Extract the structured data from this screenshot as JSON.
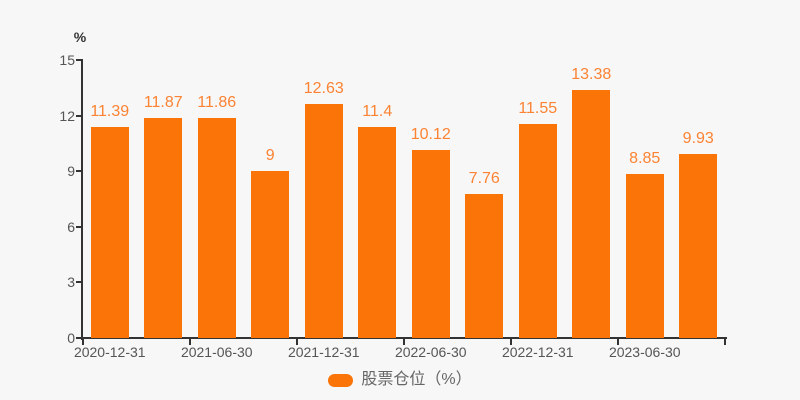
{
  "chart_data": {
    "type": "bar",
    "title": "",
    "ylabel_unit": "%",
    "values": [
      11.39,
      11.87,
      11.86,
      9,
      12.63,
      11.4,
      10.12,
      7.76,
      11.55,
      13.38,
      8.85,
      9.93
    ],
    "x_tick_labels": [
      "2020-12-31",
      "2021-06-30",
      "2021-12-31",
      "2022-06-30",
      "2022-12-31",
      "2023-06-30"
    ],
    "x_label_bar_indexes": [
      0,
      2,
      4,
      6,
      8,
      10
    ],
    "yticks": [
      0,
      3,
      6,
      9,
      12,
      15
    ],
    "ylim": [
      0,
      15
    ],
    "grid": false,
    "legend": {
      "label": "股票仓位（%）",
      "position": "bottom-center"
    },
    "colors": {
      "background": "#f7f7f7",
      "bar": "#fa7408",
      "value_label": "#fb8333",
      "axis": "#333333",
      "tick_label": "#555555",
      "unit_label": "#333333",
      "legend_text": "#666666"
    }
  }
}
